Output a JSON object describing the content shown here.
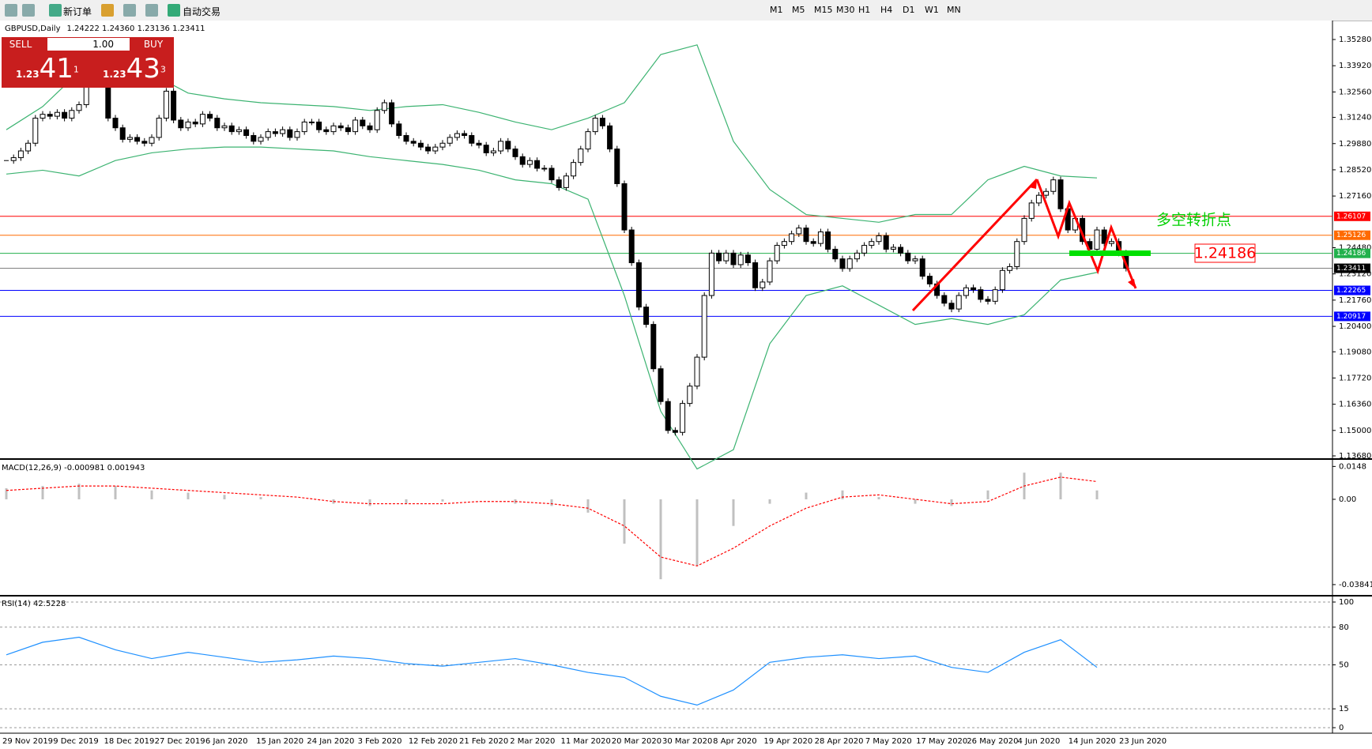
{
  "toolbar": {
    "new_order": "新订单",
    "auto_trading": "自动交易",
    "timeframes": [
      "M1",
      "M5",
      "M15",
      "M30",
      "H1",
      "H4",
      "D1",
      "W1",
      "MN"
    ]
  },
  "trade_panel": {
    "sell": "SELL",
    "buy": "BUY",
    "lot": "1.00",
    "sell_prefix": "1.23",
    "sell_big": "41",
    "sell_sup": "1",
    "buy_prefix": "1.23",
    "buy_big": "43",
    "buy_sup": "3"
  },
  "chart_data": [
    {
      "type": "candlestick",
      "title": "GBPUSD,Daily",
      "subtitle": "1.24222 1.24360 1.23136 1.23411",
      "date_labels": [
        "29 Nov 2019",
        "9 Dec 2019",
        "18 Dec 2019",
        "27 Dec 2019",
        "6 Jan 2020",
        "15 Jan 2020",
        "24 Jan 2020",
        "3 Feb 2020",
        "12 Feb 2020",
        "21 Feb 2020",
        "2 Mar 2020",
        "11 Mar 2020",
        "20 Mar 2020",
        "30 Mar 2020",
        "8 Apr 2020",
        "19 Apr 2020",
        "28 Apr 2020",
        "7 May 2020",
        "17 May 2020",
        "26 May 2020",
        "4 Jun 2020",
        "14 Jun 2020",
        "23 Jun 2020"
      ],
      "close": [
        1.29,
        1.2915,
        1.295,
        1.299,
        1.312,
        1.314,
        1.313,
        1.315,
        1.312,
        1.316,
        1.319,
        1.33,
        1.333,
        1.333,
        1.312,
        1.307,
        1.301,
        1.302,
        1.3,
        1.299,
        1.302,
        1.312,
        1.326,
        1.311,
        1.307,
        1.31,
        1.309,
        1.314,
        1.312,
        1.307,
        1.308,
        1.305,
        1.306,
        1.303,
        1.3,
        1.302,
        1.305,
        1.304,
        1.306,
        1.302,
        1.305,
        1.31,
        1.31,
        1.306,
        1.305,
        1.308,
        1.307,
        1.305,
        1.311,
        1.308,
        1.306,
        1.316,
        1.32,
        1.309,
        1.303,
        1.3,
        1.299,
        1.297,
        1.295,
        1.297,
        1.299,
        1.302,
        1.304,
        1.303,
        1.299,
        1.298,
        1.294,
        1.295,
        1.3,
        1.296,
        1.292,
        1.288,
        1.29,
        1.286,
        1.286,
        1.28,
        1.276,
        1.282,
        1.289,
        1.296,
        1.305,
        1.312,
        1.308,
        1.296,
        1.278,
        1.254,
        1.237,
        1.214,
        1.205,
        1.182,
        1.165,
        1.15,
        1.149,
        1.164,
        1.173,
        1.188,
        1.22,
        1.242,
        1.238,
        1.242,
        1.236,
        1.241,
        1.237,
        1.224,
        1.227,
        1.238,
        1.246,
        1.248,
        1.252,
        1.255,
        1.248,
        1.247,
        1.253,
        1.244,
        1.239,
        1.234,
        1.239,
        1.242,
        1.246,
        1.248,
        1.251,
        1.244,
        1.245,
        1.242,
        1.238,
        1.239,
        1.23,
        1.226,
        1.22,
        1.216,
        1.213,
        1.22,
        1.224,
        1.223,
        1.218,
        1.217,
        1.223,
        1.233,
        1.235,
        1.248,
        1.26,
        1.268,
        1.272,
        1.274,
        1.28,
        1.265,
        1.254,
        1.26,
        1.248,
        1.244,
        1.254,
        1.247,
        1.248,
        1.242,
        1.2341
      ],
      "band_upper": [
        1.306,
        1.318,
        1.336,
        1.34,
        1.335,
        1.325,
        1.322,
        1.32,
        1.319,
        1.318,
        1.316,
        1.318,
        1.319,
        1.315,
        1.31,
        1.306,
        1.312,
        1.32,
        1.345,
        1.35,
        1.3,
        1.275,
        1.262,
        1.26,
        1.258,
        1.262,
        1.262,
        1.28,
        1.287,
        1.282,
        1.281
      ],
      "band_lower": [
        1.283,
        1.285,
        1.282,
        1.29,
        1.294,
        1.296,
        1.297,
        1.297,
        1.296,
        1.295,
        1.292,
        1.29,
        1.288,
        1.285,
        1.28,
        1.278,
        1.27,
        1.22,
        1.16,
        1.13,
        1.14,
        1.195,
        1.22,
        1.225,
        1.215,
        1.205,
        1.208,
        1.205,
        1.21,
        1.228,
        1.232
      ],
      "band_color": "#3cb371",
      "ylim": [
        1.1368,
        1.3528
      ],
      "yticks": [
        {
          "value": 1.3528,
          "label": "1.35280"
        },
        {
          "value": 1.3392,
          "label": "1.33920"
        },
        {
          "value": 1.3256,
          "label": "1.32560"
        },
        {
          "value": 1.3124,
          "label": "1.31240"
        },
        {
          "value": 1.2988,
          "label": "1.29880"
        },
        {
          "value": 1.2852,
          "label": "1.28520"
        },
        {
          "value": 1.2716,
          "label": "1.27160"
        },
        {
          "value": 1.2448,
          "label": "1.24480"
        },
        {
          "value": 1.2312,
          "label": "1.23120"
        },
        {
          "value": 1.2176,
          "label": "1.21760"
        },
        {
          "value": 1.204,
          "label": "1.20400"
        },
        {
          "value": 1.1908,
          "label": "1.19080"
        },
        {
          "value": 1.1772,
          "label": "1.17720"
        },
        {
          "value": 1.1636,
          "label": "1.16360"
        },
        {
          "value": 1.15,
          "label": "1.15000"
        },
        {
          "value": 1.1368,
          "label": "1.13680"
        }
      ],
      "levels": [
        {
          "value": 1.26107,
          "color": "#ff0000"
        },
        {
          "value": 1.25126,
          "color": "#ff6a00"
        },
        {
          "value": 1.24186,
          "color": "#22b14c"
        },
        {
          "value": 1.23411,
          "color": "#000000"
        },
        {
          "value": 1.22265,
          "color": "#0000ff"
        },
        {
          "value": 1.20917,
          "color": "#0000ff"
        }
      ],
      "annotations": [
        "多空转折点",
        "1.24186"
      ]
    },
    {
      "type": "macd",
      "title": "MACD(12,26,9) -0.000981 0.001943",
      "values": [
        0.005,
        0.006,
        0.007,
        0.006,
        0.004,
        0.003,
        0.002,
        0.001,
        0,
        -0.002,
        -0.003,
        -0.002,
        -0.001,
        0,
        -0.002,
        -0.003,
        -0.006,
        -0.02,
        -0.036,
        -0.03,
        -0.012,
        -0.002,
        0.003,
        0.004,
        0.001,
        -0.002,
        -0.003,
        0.004,
        0.012,
        0.012,
        0.004
      ],
      "signal": [
        0.004,
        0.005,
        0.006,
        0.006,
        0.005,
        0.004,
        0.003,
        0.002,
        0.001,
        -0.001,
        -0.002,
        -0.002,
        -0.002,
        -0.001,
        -0.001,
        -0.002,
        -0.004,
        -0.012,
        -0.026,
        -0.03,
        -0.022,
        -0.012,
        -0.004,
        0.001,
        0.002,
        0,
        -0.002,
        -0.001,
        0.006,
        0.01,
        0.008
      ],
      "color": "#c0c0c0",
      "signal_color": "#ff0000",
      "ylim": [
        -0.042,
        0.016
      ],
      "yticks": [
        0.0148,
        {
          "value": 0,
          "label": "0.00"
        },
        -0.038415
      ]
    },
    {
      "type": "rsi",
      "title": "RSI(14) 42.5228",
      "values": [
        58,
        68,
        72,
        62,
        55,
        60,
        56,
        52,
        54,
        57,
        55,
        51,
        49,
        52,
        55,
        50,
        44,
        40,
        25,
        18,
        30,
        52,
        56,
        58,
        55,
        57,
        48,
        44,
        60,
        70,
        48
      ],
      "color": "#1e90ff",
      "ylim": [
        0,
        100
      ],
      "yticks": [
        100,
        80,
        50,
        15,
        0
      ]
    }
  ]
}
